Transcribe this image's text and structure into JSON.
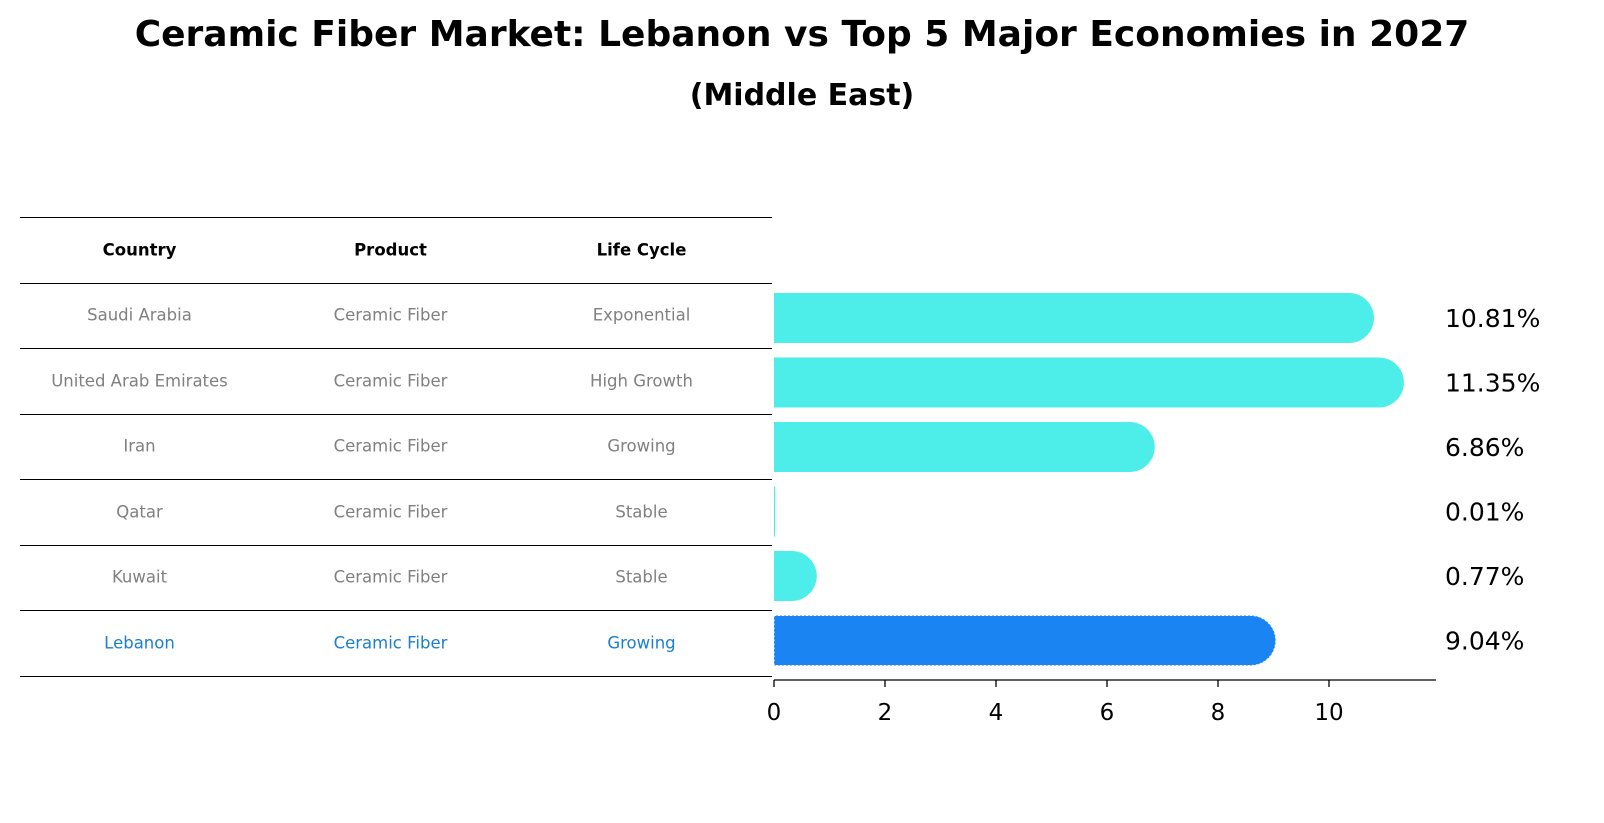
{
  "title": "Ceramic Fiber Market: Lebanon vs Top 5 Major Economies in 2027",
  "subtitle": "(Middle East)",
  "table": {
    "headers": [
      "Country",
      "Product",
      "Life Cycle"
    ],
    "rows": [
      [
        "Saudi Arabia",
        "Ceramic Fiber",
        "Exponential"
      ],
      [
        "United Arab Emirates",
        "Ceramic Fiber",
        "High Growth"
      ],
      [
        "Iran",
        "Ceramic Fiber",
        "Growing"
      ],
      [
        "Qatar",
        "Ceramic Fiber",
        "Stable"
      ],
      [
        "Kuwait",
        "Ceramic Fiber",
        "Stable"
      ],
      [
        "Lebanon",
        "Ceramic Fiber",
        "Growing"
      ]
    ],
    "highlight_row": 5
  },
  "colors": {
    "bar": "#4deeea",
    "highlight_bar": "#1a85f2",
    "highlight_text": "#1a7fd1",
    "muted_text": "#808080"
  },
  "chart_data": {
    "type": "bar",
    "orientation": "horizontal",
    "categories": [
      "Saudi Arabia",
      "United Arab Emirates",
      "Iran",
      "Qatar",
      "Kuwait",
      "Lebanon"
    ],
    "values": [
      10.81,
      11.35,
      6.86,
      0.01,
      0.77,
      9.04
    ],
    "value_labels": [
      "10.81%",
      "11.35%",
      "6.86%",
      "0.01%",
      "0.77%",
      "9.04%"
    ],
    "xlim": [
      0,
      11.35
    ],
    "xticks": [
      0,
      2,
      4,
      6,
      8,
      10
    ],
    "highlight": "Lebanon",
    "grid": false
  }
}
